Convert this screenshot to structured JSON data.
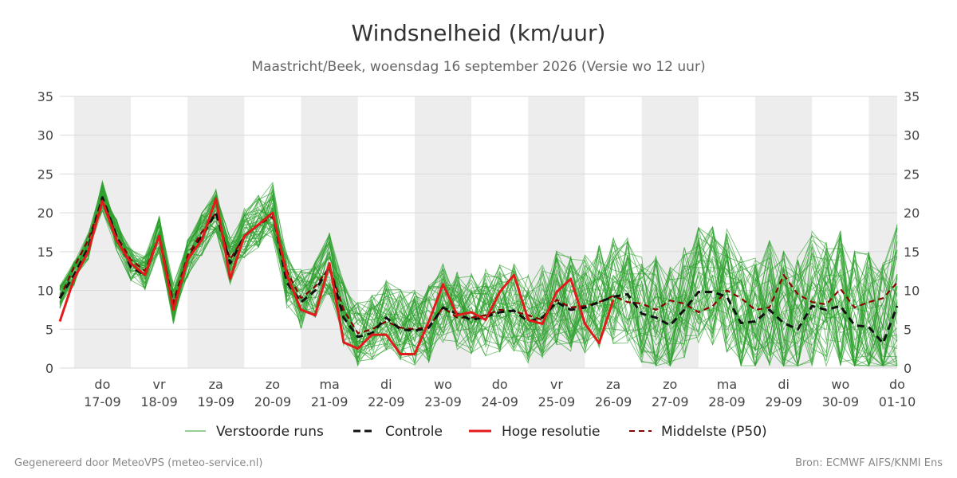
{
  "chart_data": {
    "type": "line",
    "title": "Windsnelheid (km/uur)",
    "subtitle": "Maastricht/Beek, woensdag 16 september 2026 (Versie wo 12 uur)",
    "ylim": [
      0,
      35
    ],
    "yticks": [
      0,
      5,
      10,
      15,
      20,
      25,
      30,
      35
    ],
    "x_start_day": 16.75,
    "x_end_day": 31.5,
    "days": [
      {
        "day": "do",
        "date": "17-09"
      },
      {
        "day": "vr",
        "date": "18-09"
      },
      {
        "day": "za",
        "date": "19-09"
      },
      {
        "day": "zo",
        "date": "20-09"
      },
      {
        "day": "ma",
        "date": "21-09"
      },
      {
        "day": "di",
        "date": "22-09"
      },
      {
        "day": "wo",
        "date": "23-09"
      },
      {
        "day": "do",
        "date": "24-09"
      },
      {
        "day": "vr",
        "date": "25-09"
      },
      {
        "day": "za",
        "date": "26-09"
      },
      {
        "day": "zo",
        "date": "27-09"
      },
      {
        "day": "ma",
        "date": "28-09"
      },
      {
        "day": "di",
        "date": "29-09"
      },
      {
        "day": "wo",
        "date": "30-09"
      },
      {
        "day": "do",
        "date": "01-10"
      }
    ],
    "ensemble_count": 50,
    "series": [
      {
        "name": "Controle",
        "color": "#111111",
        "dash": "dashed",
        "x": [
          16.75,
          17.0,
          17.25,
          17.5,
          17.75,
          18.0,
          18.25,
          18.5,
          18.75,
          19.0,
          19.25,
          19.5,
          19.75,
          20.0,
          20.25,
          20.5,
          20.75,
          21.0,
          21.25,
          21.5,
          21.75,
          22.0,
          22.25,
          22.5,
          22.75,
          23.0,
          23.25,
          23.5,
          23.75,
          24.0,
          24.25,
          24.5,
          24.75,
          25.0,
          25.25,
          25.5,
          25.75,
          26.0,
          26.25,
          26.5,
          26.75,
          27.0,
          27.25,
          27.5,
          27.75,
          28.0,
          28.25,
          28.5,
          28.75,
          29.0,
          29.25,
          29.5,
          29.75,
          30.0,
          30.25,
          30.5,
          30.75,
          31.0,
          31.25,
          31.5
        ],
        "values": [
          9.0,
          12.0,
          15.5,
          22.0,
          17.0,
          13.0,
          12.0,
          17.0,
          8.0,
          14.0,
          17.0,
          20.0,
          13.5,
          17.0,
          18.5,
          20.0,
          11.0,
          8.5,
          10.0,
          13.0,
          6.5,
          4.0,
          4.5,
          6.5,
          5.0,
          4.8,
          5.2,
          7.8,
          7.0,
          6.2,
          6.6,
          7.2,
          7.4,
          6.0,
          6.5,
          8.5,
          7.5,
          7.8,
          8.5,
          9.2,
          9.5,
          7.0,
          6.5,
          5.5,
          7.5,
          9.8,
          9.8,
          9.2,
          5.8,
          6.0,
          7.5,
          5.8,
          5.0,
          8.0,
          7.5,
          8.0,
          5.5,
          5.3,
          3.2,
          8.0
        ]
      },
      {
        "name": "Hoge resolutie",
        "color": "#e31a1c",
        "dash": "solid",
        "x": [
          16.75,
          17.0,
          17.25,
          17.5,
          17.75,
          18.0,
          18.25,
          18.5,
          18.75,
          19.0,
          19.25,
          19.5,
          19.75,
          20.0,
          20.25,
          20.5,
          20.75,
          21.0,
          21.25,
          21.5,
          21.75,
          22.0,
          22.25,
          22.5,
          22.75,
          23.0,
          23.25,
          23.5,
          23.75,
          24.0,
          24.25,
          24.5,
          24.75,
          25.0,
          25.25,
          25.5,
          25.75,
          26.0,
          26.25,
          26.5
        ],
        "values": [
          6.0,
          11.5,
          15.0,
          21.5,
          16.5,
          13.5,
          12.0,
          17.0,
          7.5,
          14.0,
          16.5,
          21.8,
          11.5,
          17.0,
          18.5,
          20.0,
          12.0,
          7.5,
          6.8,
          13.5,
          3.3,
          2.5,
          4.3,
          4.3,
          1.8,
          1.8,
          6.0,
          10.8,
          6.8,
          7.2,
          6.2,
          9.8,
          12.0,
          6.2,
          5.7,
          9.8,
          11.5,
          5.7,
          3.2,
          8.8
        ]
      },
      {
        "name": "Middelste (P50)",
        "color": "#8b0000",
        "dash": "dashed",
        "x": [
          16.75,
          17.0,
          17.25,
          17.5,
          17.75,
          18.0,
          18.25,
          18.5,
          18.75,
          19.0,
          19.25,
          19.5,
          19.75,
          20.0,
          20.25,
          20.5,
          20.75,
          21.0,
          21.25,
          21.5,
          21.75,
          22.0,
          22.25,
          22.5,
          22.75,
          23.0,
          23.25,
          23.5,
          23.75,
          24.0,
          24.25,
          24.5,
          24.75,
          25.0,
          25.25,
          25.5,
          25.75,
          26.0,
          26.25,
          26.5,
          26.75,
          27.0,
          27.25,
          27.5,
          27.75,
          28.0,
          28.25,
          28.5,
          28.75,
          29.0,
          29.25,
          29.5,
          29.75,
          30.0,
          30.25,
          30.5,
          30.75,
          31.0,
          31.25,
          31.5
        ],
        "values": [
          9.0,
          13.0,
          16.5,
          21.8,
          17.0,
          14.0,
          12.5,
          17.0,
          8.5,
          14.5,
          17.5,
          20.0,
          14.0,
          17.0,
          18.5,
          19.5,
          12.5,
          9.0,
          10.5,
          13.0,
          7.5,
          4.5,
          5.0,
          6.0,
          5.2,
          5.0,
          5.3,
          7.8,
          6.5,
          6.5,
          6.8,
          7.5,
          7.3,
          6.8,
          6.2,
          8.8,
          7.8,
          8.0,
          8.5,
          9.3,
          8.5,
          8.3,
          7.5,
          8.7,
          8.3,
          7.2,
          8.0,
          10.0,
          9.0,
          7.5,
          7.8,
          12.0,
          9.5,
          8.5,
          8.2,
          10.2,
          7.8,
          8.5,
          9.0,
          11.0
        ]
      }
    ],
    "legend": [
      {
        "label": "Verstoorde runs",
        "color": "#2ca02c",
        "style": "thin"
      },
      {
        "label": "Controle",
        "color": "#111111",
        "style": "dashed"
      },
      {
        "label": "Hoge resolutie",
        "color": "#e31a1c",
        "style": "solid"
      },
      {
        "label": "Middelste (P50)",
        "color": "#8b0000",
        "style": "dashed-thin"
      }
    ]
  },
  "footer": {
    "left": "Gegenereerd door MeteoVPS (meteo-service.nl)",
    "right": "Bron: ECMWF AIFS/KNMI Ens"
  }
}
